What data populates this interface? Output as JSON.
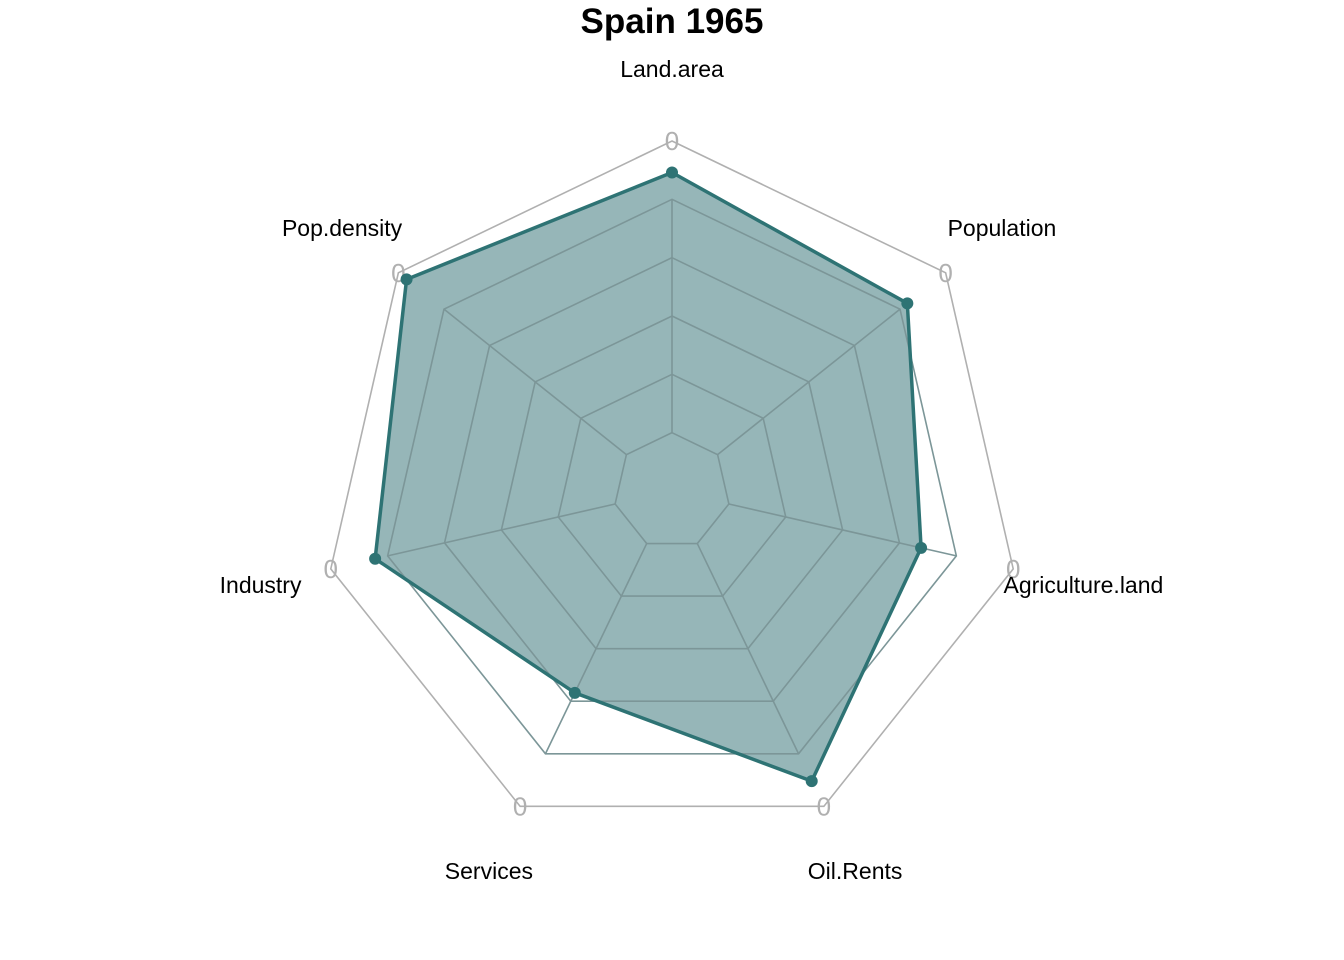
{
  "chart_data": {
    "type": "radar",
    "title": "Spain 1965",
    "axes": [
      "Land.area",
      "Population",
      "Agriculture.land",
      "Oil.Rents",
      "Services",
      "Industry",
      "Pop.density"
    ],
    "values": [
      0.91,
      0.86,
      0.73,
      0.92,
      0.64,
      0.87,
      0.97
    ],
    "range": [
      0,
      1
    ],
    "rings": 6,
    "ring_label": "0",
    "series_color": "#2e7374",
    "fill_color": "#96b6b8",
    "grid_color": "#7c9698",
    "outer_ring_color": "#b0b0b0"
  }
}
